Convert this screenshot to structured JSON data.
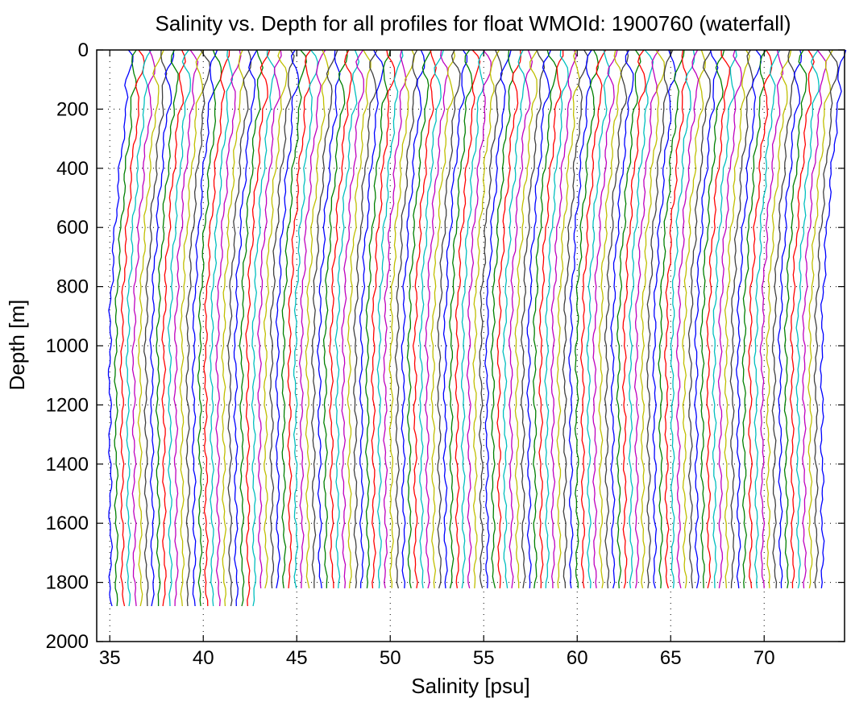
{
  "chart_data": {
    "type": "line",
    "title": "Salinity vs. Depth for all profiles for float WMOId: 1900760 (waterfall)",
    "xlabel": "Salinity [psu]",
    "ylabel": "Depth [m]",
    "xlim": [
      34.3,
      74.3
    ],
    "ylim": [
      0,
      2000
    ],
    "y_reversed": true,
    "xticks": [
      35,
      40,
      45,
      50,
      55,
      60,
      65,
      70
    ],
    "yticks": [
      0,
      200,
      400,
      600,
      800,
      1000,
      1200,
      1400,
      1600,
      1800,
      2000
    ],
    "grid": "dotted",
    "waterfall": {
      "profile_count": 120,
      "first_offset": 35.0,
      "offset_step": 0.32,
      "base_salinity_surface": 35.9,
      "base_salinity_1000m": 34.9,
      "base_salinity_bottom": 34.95,
      "max_depth": 1880
    },
    "colors": [
      "#0000ff",
      "#008000",
      "#ff0000",
      "#00bfbf",
      "#bf00bf",
      "#bfbf00",
      "#404040"
    ]
  }
}
